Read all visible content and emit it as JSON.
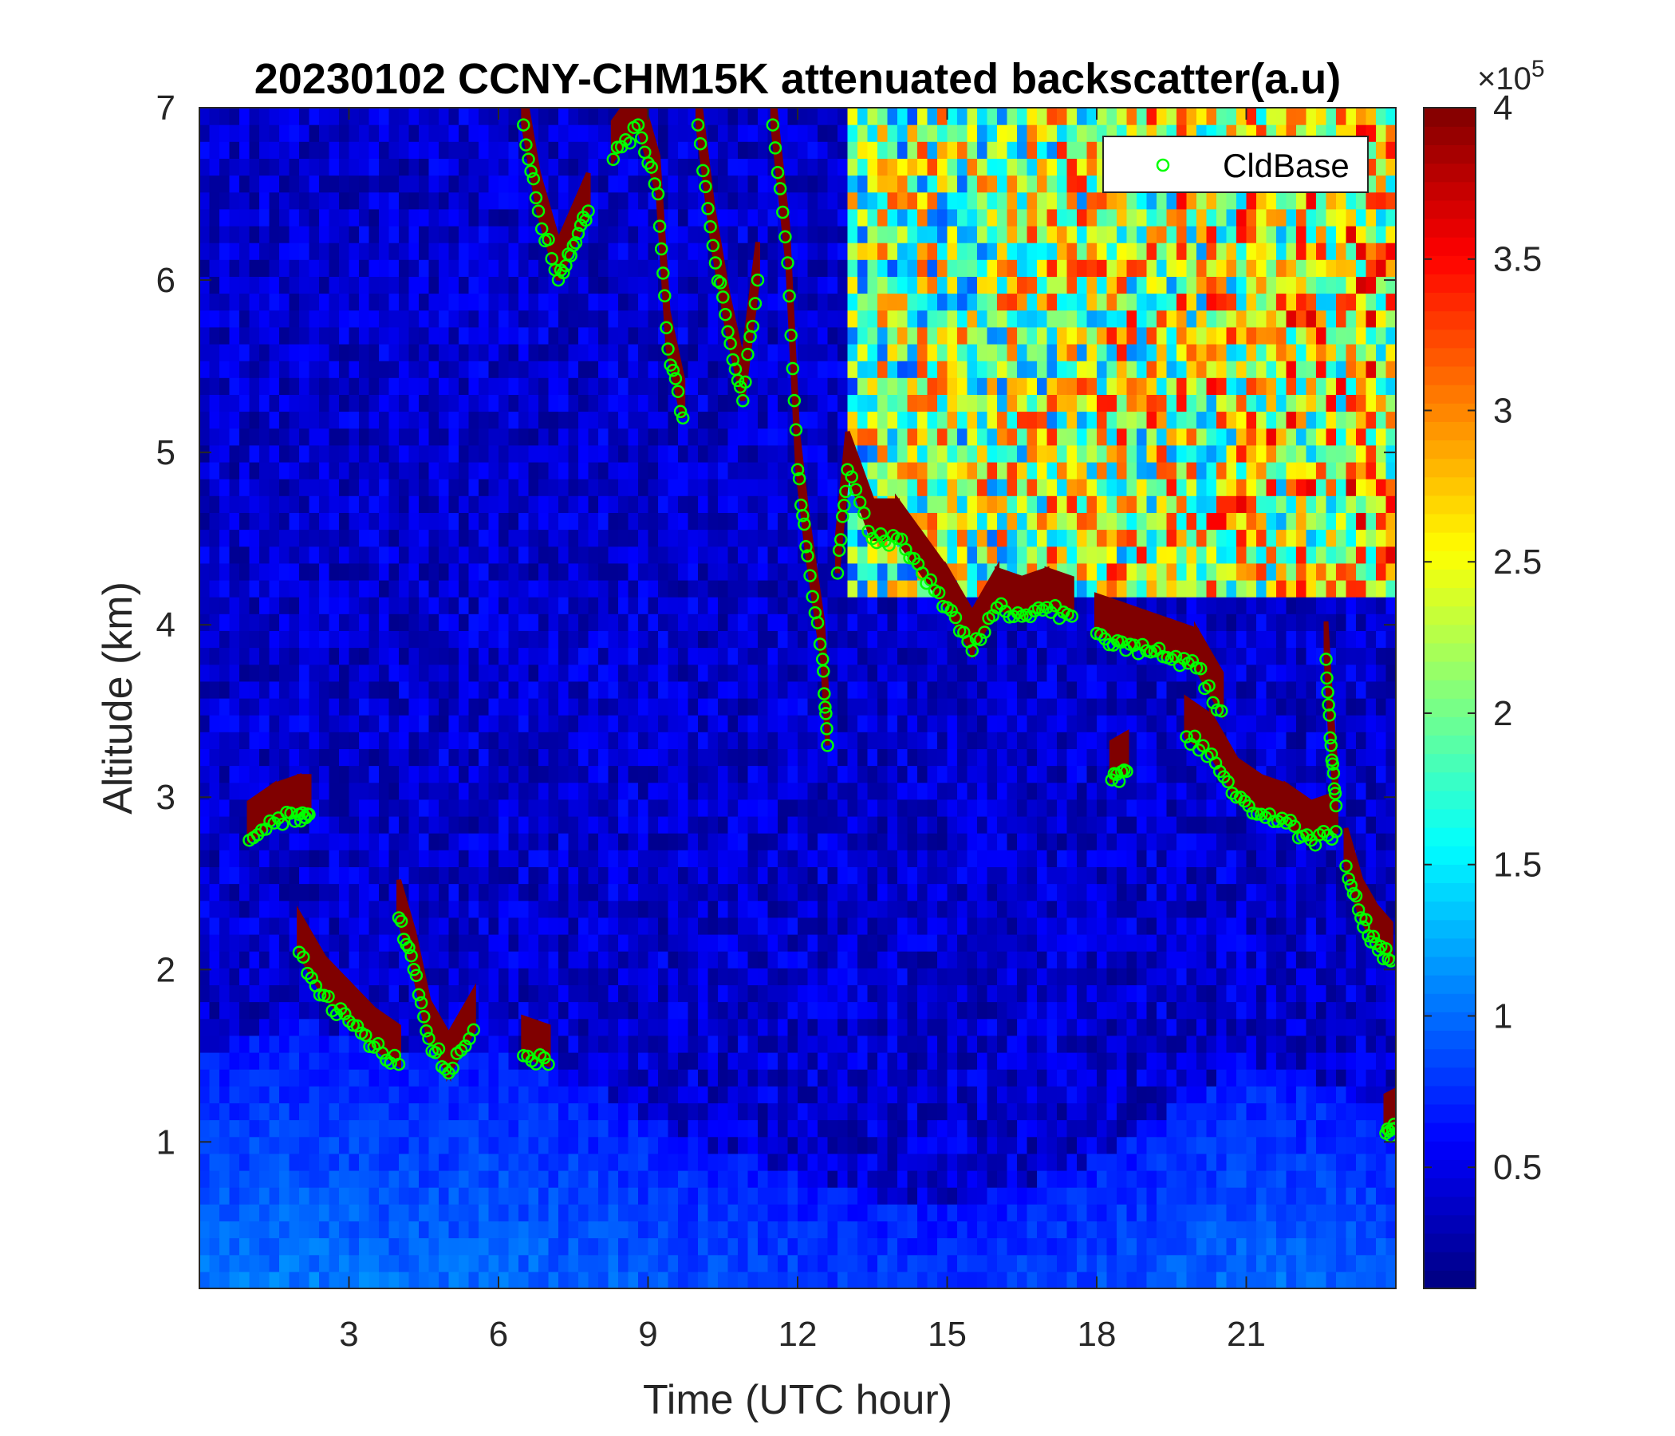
{
  "chart_data": {
    "type": "heatmap",
    "title": "20230102 CCNY-CHM15K attenuated backscatter(a.u)",
    "xlabel": "Time (UTC hour)",
    "ylabel": "Altitude (km)",
    "xlim": [
      0,
      24
    ],
    "ylim": [
      0.15,
      7
    ],
    "xticks": [
      "3",
      "6",
      "9",
      "12",
      "15",
      "18",
      "21"
    ],
    "xtick_values": [
      3,
      6,
      9,
      12,
      15,
      18,
      21
    ],
    "yticks": [
      "1",
      "2",
      "3",
      "4",
      "5",
      "6",
      "7"
    ],
    "ytick_values": [
      1,
      2,
      3,
      4,
      5,
      6,
      7
    ],
    "colormap": "jet",
    "colorbar": {
      "range": [
        0.1,
        4
      ],
      "ticks": [
        "0.5",
        "1",
        "1.5",
        "2",
        "2.5",
        "3",
        "3.5",
        "4"
      ],
      "tick_values": [
        0.5,
        1,
        1.5,
        2,
        2.5,
        3,
        3.5,
        4
      ],
      "exponent_label": "×10",
      "exponent_power": "5"
    },
    "legend": {
      "entries": [
        "CldBase"
      ],
      "position": "top-right",
      "marker_color": "#00ff00"
    },
    "background_level": 0.4,
    "boundary_layer": [
      {
        "t": 0.0,
        "top": 1.5
      },
      {
        "t": 2.0,
        "top": 1.7
      },
      {
        "t": 4.0,
        "top": 1.5
      },
      {
        "t": 6.0,
        "top": 1.5
      },
      {
        "t": 8.0,
        "top": 1.3
      },
      {
        "t": 10.0,
        "top": 1.0
      },
      {
        "t": 12.0,
        "top": 0.8
      },
      {
        "t": 15.0,
        "top": 0.6
      },
      {
        "t": 18.0,
        "top": 0.9
      },
      {
        "t": 21.0,
        "top": 1.5
      },
      {
        "t": 24.0,
        "top": 1.2
      }
    ],
    "high_signal_region": {
      "t_start": 13.0,
      "t_end": 24.0,
      "alt_min": 4.2,
      "alt_max": 7.0,
      "note": "noisy elevated backscatter above the cloud deck"
    },
    "cloud_layers": [
      {
        "points": [
          [
            1.0,
            2.75
          ],
          [
            1.5,
            2.85
          ],
          [
            2.0,
            2.9
          ],
          [
            2.2,
            2.9
          ]
        ]
      },
      {
        "points": [
          [
            2.0,
            2.1
          ],
          [
            2.5,
            1.85
          ],
          [
            3.0,
            1.7
          ],
          [
            3.5,
            1.55
          ],
          [
            4.0,
            1.45
          ]
        ]
      },
      {
        "points": [
          [
            4.0,
            2.3
          ],
          [
            4.3,
            2.0
          ],
          [
            4.6,
            1.6
          ],
          [
            5.0,
            1.4
          ],
          [
            5.5,
            1.65
          ]
        ]
      },
      {
        "points": [
          [
            6.5,
            1.5
          ],
          [
            7.0,
            1.45
          ]
        ]
      },
      {
        "points": [
          [
            6.5,
            6.9
          ],
          [
            6.8,
            6.4
          ],
          [
            7.2,
            6.0
          ],
          [
            7.5,
            6.2
          ],
          [
            7.8,
            6.4
          ]
        ]
      },
      {
        "points": [
          [
            8.3,
            6.7
          ],
          [
            8.8,
            6.9
          ],
          [
            9.2,
            6.5
          ],
          [
            9.4,
            5.6
          ],
          [
            9.7,
            5.2
          ]
        ]
      },
      {
        "points": [
          [
            10.0,
            6.9
          ],
          [
            10.3,
            6.2
          ],
          [
            10.6,
            5.7
          ],
          [
            10.9,
            5.3
          ],
          [
            11.2,
            6.0
          ]
        ]
      },
      {
        "points": [
          [
            11.5,
            6.9
          ],
          [
            11.8,
            6.1
          ],
          [
            12.0,
            4.9
          ],
          [
            12.2,
            4.4
          ],
          [
            12.5,
            3.8
          ],
          [
            12.6,
            3.3
          ]
        ]
      },
      {
        "points": [
          [
            12.8,
            4.3
          ],
          [
            13.0,
            4.9
          ],
          [
            13.5,
            4.5
          ],
          [
            14.0,
            4.5
          ],
          [
            14.5,
            4.3
          ],
          [
            15.0,
            4.1
          ],
          [
            15.5,
            3.85
          ],
          [
            16.0,
            4.1
          ],
          [
            16.5,
            4.05
          ],
          [
            17.0,
            4.1
          ],
          [
            17.5,
            4.05
          ]
        ]
      },
      {
        "points": [
          [
            18.0,
            3.95
          ],
          [
            18.5,
            3.9
          ],
          [
            19.0,
            3.85
          ],
          [
            19.5,
            3.8
          ],
          [
            20.0,
            3.75
          ],
          [
            20.5,
            3.5
          ]
        ]
      },
      {
        "points": [
          [
            18.3,
            3.1
          ],
          [
            18.6,
            3.15
          ]
        ]
      },
      {
        "points": [
          [
            19.8,
            3.35
          ],
          [
            20.3,
            3.25
          ],
          [
            20.8,
            3.0
          ],
          [
            21.3,
            2.9
          ],
          [
            21.8,
            2.85
          ],
          [
            22.3,
            2.75
          ],
          [
            22.8,
            2.8
          ]
        ]
      },
      {
        "points": [
          [
            22.6,
            3.8
          ],
          [
            22.7,
            3.3
          ],
          [
            22.8,
            2.95
          ]
        ]
      },
      {
        "points": [
          [
            23.0,
            2.6
          ],
          [
            23.3,
            2.3
          ],
          [
            23.6,
            2.15
          ],
          [
            23.9,
            2.05
          ]
        ]
      },
      {
        "points": [
          [
            23.8,
            1.05
          ],
          [
            24.0,
            1.08
          ]
        ]
      }
    ]
  }
}
